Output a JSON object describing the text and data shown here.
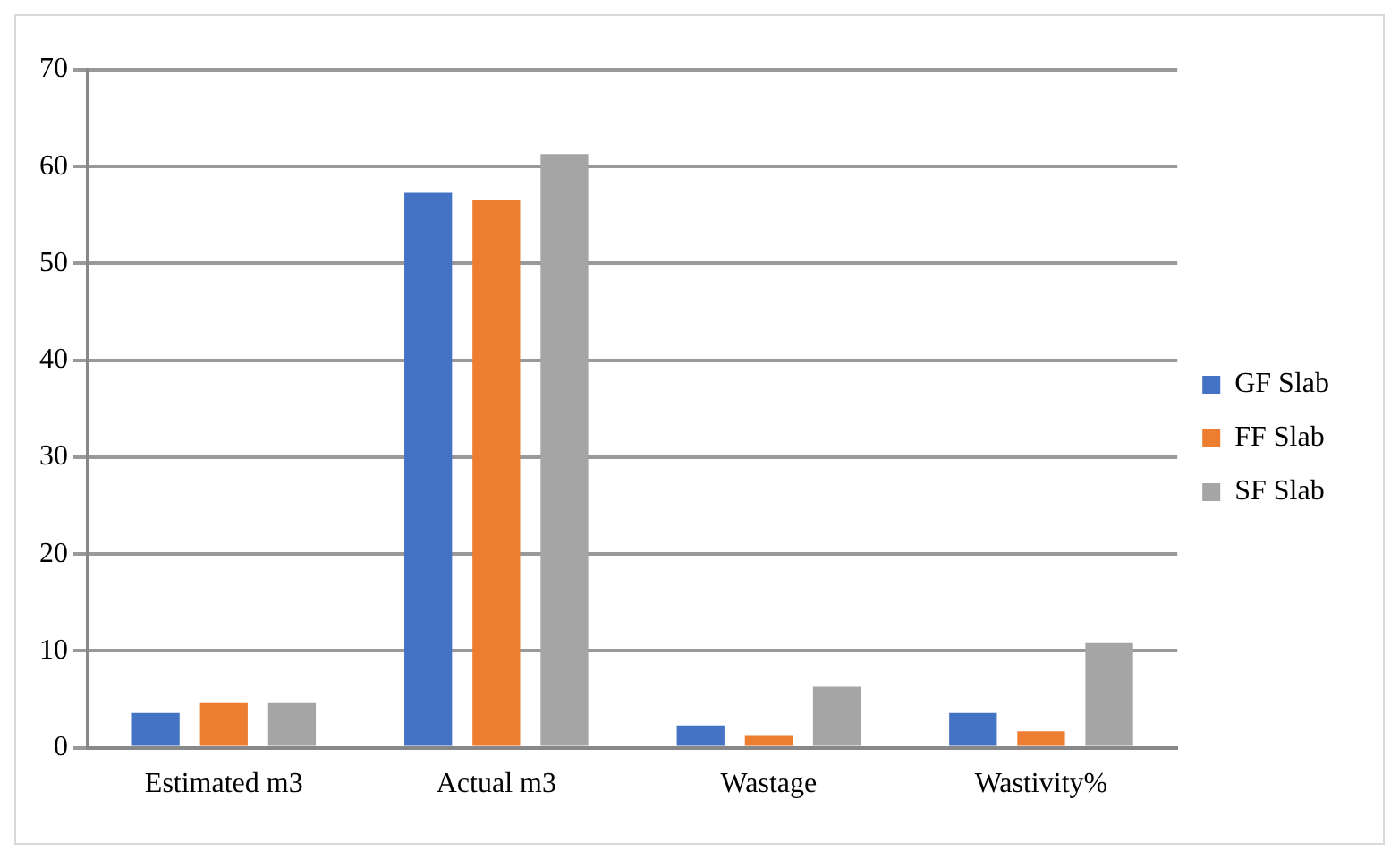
{
  "chart_data": {
    "type": "bar",
    "categories": [
      "Estimated m3",
      "Actual m3",
      "Wastage",
      "Wastivity%"
    ],
    "series": [
      {
        "name": "GF Slab",
        "color": "#4472c4",
        "values": [
          3.6,
          57.3,
          2.3,
          3.6
        ]
      },
      {
        "name": "FF Slab",
        "color": "#ed7d31",
        "values": [
          4.6,
          56.5,
          1.3,
          1.7
        ]
      },
      {
        "name": "SF Slab",
        "color": "#a5a5a5",
        "values": [
          4.6,
          61.3,
          6.3,
          10.8
        ]
      }
    ],
    "ylim": [
      0,
      70
    ],
    "yticks": [
      0,
      10,
      20,
      30,
      40,
      50,
      60,
      70
    ],
    "grid": "y",
    "legend": "right"
  }
}
